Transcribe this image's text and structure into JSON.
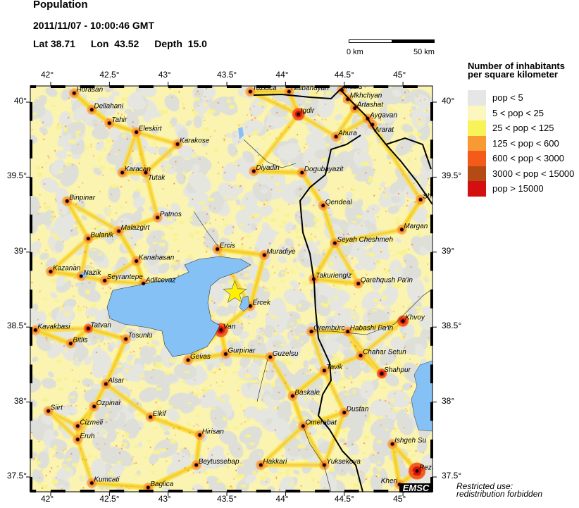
{
  "header": {
    "title": "Population",
    "datetime": "2011/11/07 - 10:00:46 GMT",
    "lat_label": "Lat",
    "lat": "38.71",
    "lon_label": "Lon",
    "lon": "43.52",
    "depth_label": "Depth",
    "depth": "15.0"
  },
  "scale_bar": {
    "start": "0 km",
    "end": "50 km"
  },
  "axes": {
    "lon_ticks": [
      {
        "v": 42,
        "label": "42°"
      },
      {
        "v": 42.5,
        "label": "42.5°"
      },
      {
        "v": 43,
        "label": "43°"
      },
      {
        "v": 43.5,
        "label": "43.5°"
      },
      {
        "v": 44,
        "label": "44°"
      },
      {
        "v": 44.5,
        "label": "44.5°"
      },
      {
        "v": 45,
        "label": "45°"
      }
    ],
    "lat_ticks": [
      {
        "v": 40,
        "label": "40°"
      },
      {
        "v": 39.5,
        "label": "39.5°"
      },
      {
        "v": 39,
        "label": "39°"
      },
      {
        "v": 38.5,
        "label": "38.5°"
      },
      {
        "v": 38,
        "label": "38°"
      },
      {
        "v": 37.5,
        "label": "37.5°"
      }
    ]
  },
  "legend": {
    "title_line1": "Number of inhabitants",
    "title_line2": "per square kilometer",
    "items": [
      {
        "label": "pop < 5",
        "color": "#e6e6e6"
      },
      {
        "label": "5 < pop < 25",
        "color": "#fbf7bd"
      },
      {
        "label": "25 < pop < 125",
        "color": "#f9f35a"
      },
      {
        "label": "125 < pop < 600",
        "color": "#f79a33"
      },
      {
        "label": "600 < pop < 3000",
        "color": "#f45a1a"
      },
      {
        "label": "3000 < pop < 15000",
        "color": "#b44a14"
      },
      {
        "label": "pop > 15000",
        "color": "#d40f0f"
      }
    ]
  },
  "colors": {
    "water": "#85c1f5",
    "epicenter": "#fff200",
    "border": "#000000"
  },
  "epicenter": {
    "lat": 38.71,
    "lon": 43.52,
    "icon": "star-icon"
  },
  "cities": [
    {
      "name": "Horasan",
      "lat": 40.06,
      "lon": 42.2
    },
    {
      "name": "Dellahani",
      "lat": 39.95,
      "lon": 42.35
    },
    {
      "name": "Tahir",
      "lat": 39.86,
      "lon": 42.5
    },
    {
      "name": "Eleskirt",
      "lat": 39.8,
      "lon": 42.73
    },
    {
      "name": "Karakose",
      "lat": 39.72,
      "lon": 43.08
    },
    {
      "name": "Tuzluca",
      "lat": 40.07,
      "lon": 43.7
    },
    {
      "name": "Nalbandyan",
      "lat": 40.07,
      "lon": 44.03
    },
    {
      "name": "Masis",
      "lat": 40.08,
      "lon": 44.48
    },
    {
      "name": "Mkhchyan",
      "lat": 40.02,
      "lon": 44.53
    },
    {
      "name": "Artashat",
      "lat": 39.96,
      "lon": 44.59
    },
    {
      "name": "Aygavan",
      "lat": 39.89,
      "lon": 44.7
    },
    {
      "name": "Ararat",
      "lat": 39.85,
      "lon": 44.74
    },
    {
      "name": "Igdir",
      "lat": 39.92,
      "lon": 44.11
    },
    {
      "name": "Ahura",
      "lat": 39.77,
      "lon": 44.43
    },
    {
      "name": "Karacan",
      "lat": 39.53,
      "lon": 42.61
    },
    {
      "name": "Tutak",
      "lat": 39.53,
      "lon": 42.81
    },
    {
      "name": "Diyadin",
      "lat": 39.54,
      "lon": 43.73
    },
    {
      "name": "Dogubayazit",
      "lat": 39.53,
      "lon": 44.14
    },
    {
      "name": "Sho",
      "lat": 39.35,
      "lon": 45.15
    },
    {
      "name": "Qendeal",
      "lat": 39.31,
      "lon": 44.32
    },
    {
      "name": "Binpinar",
      "lat": 39.34,
      "lon": 42.14
    },
    {
      "name": "Patnos",
      "lat": 39.23,
      "lon": 42.91
    },
    {
      "name": "Malazgirt",
      "lat": 39.14,
      "lon": 42.58
    },
    {
      "name": "Bulanik",
      "lat": 39.09,
      "lon": 42.32
    },
    {
      "name": "Seyah Cheshmeh",
      "lat": 39.06,
      "lon": 44.42
    },
    {
      "name": "Margan",
      "lat": 39.15,
      "lon": 44.99
    },
    {
      "name": "Ercis",
      "lat": 39.02,
      "lon": 43.42
    },
    {
      "name": "Muradiye",
      "lat": 38.98,
      "lon": 43.82
    },
    {
      "name": "Kanahasan",
      "lat": 38.94,
      "lon": 42.73
    },
    {
      "name": "Kazanan",
      "lat": 38.87,
      "lon": 42.0
    },
    {
      "name": "Nazik",
      "lat": 38.84,
      "lon": 42.26
    },
    {
      "name": "Seyrantepe",
      "lat": 38.81,
      "lon": 42.46
    },
    {
      "name": "Adilcevaz",
      "lat": 38.79,
      "lon": 42.79
    },
    {
      "name": "Takuriengiz",
      "lat": 38.82,
      "lon": 44.24
    },
    {
      "name": "Qarehqush Pa'in",
      "lat": 38.79,
      "lon": 44.62
    },
    {
      "name": "Ercek",
      "lat": 38.64,
      "lon": 43.7
    },
    {
      "name": "Khvoy",
      "lat": 38.54,
      "lon": 45.0
    },
    {
      "name": "Kavakbasi",
      "lat": 38.48,
      "lon": 41.87
    },
    {
      "name": "Tatvan",
      "lat": 38.49,
      "lon": 42.32
    },
    {
      "name": "Van",
      "lat": 38.48,
      "lon": 43.45
    },
    {
      "name": "Oremburc",
      "lat": 38.47,
      "lon": 44.22
    },
    {
      "name": "Habashi Pa'in",
      "lat": 38.47,
      "lon": 44.53
    },
    {
      "name": "Tosunlu",
      "lat": 38.42,
      "lon": 42.64
    },
    {
      "name": "Bitlis",
      "lat": 38.39,
      "lon": 42.17
    },
    {
      "name": "Gurpinar",
      "lat": 38.32,
      "lon": 43.49
    },
    {
      "name": "Guzelsu",
      "lat": 38.3,
      "lon": 43.87
    },
    {
      "name": "Gevas",
      "lat": 38.28,
      "lon": 43.17
    },
    {
      "name": "Chahar Setun",
      "lat": 38.31,
      "lon": 44.64
    },
    {
      "name": "Tavik",
      "lat": 38.21,
      "lon": 44.33
    },
    {
      "name": "Shahpur",
      "lat": 38.19,
      "lon": 44.82
    },
    {
      "name": "Alsar",
      "lat": 38.12,
      "lon": 42.47
    },
    {
      "name": "Siirt",
      "lat": 37.94,
      "lon": 41.98
    },
    {
      "name": "Ozpinar",
      "lat": 37.97,
      "lon": 42.37
    },
    {
      "name": "Baskale",
      "lat": 38.04,
      "lon": 44.06
    },
    {
      "name": "Dustan",
      "lat": 37.93,
      "lon": 44.5
    },
    {
      "name": "Elkif",
      "lat": 37.9,
      "lon": 42.85
    },
    {
      "name": "Cizmeli",
      "lat": 37.84,
      "lon": 42.23
    },
    {
      "name": "Eruh",
      "lat": 37.75,
      "lon": 42.23
    },
    {
      "name": "Hirisan",
      "lat": 37.78,
      "lon": 43.27
    },
    {
      "name": "Omerabat",
      "lat": 37.84,
      "lon": 44.15
    },
    {
      "name": "Ishgeh Su",
      "lat": 37.72,
      "lon": 44.91
    },
    {
      "name": "Beytussebap",
      "lat": 37.58,
      "lon": 43.24
    },
    {
      "name": "Hakkari",
      "lat": 37.58,
      "lon": 43.79
    },
    {
      "name": "Yuksekova",
      "lat": 37.58,
      "lon": 44.33
    },
    {
      "name": "Reza",
      "lat": 37.54,
      "lon": 45.12
    },
    {
      "name": "Kheri",
      "lat": 37.45,
      "lon": 44.97
    },
    {
      "name": "Kumcati",
      "lat": 37.46,
      "lon": 42.35
    },
    {
      "name": "Baglica",
      "lat": 37.43,
      "lon": 42.83
    }
  ],
  "logo": "EMSC",
  "restriction": {
    "line1": "Restricted use:",
    "line2": "redistribution forbidden"
  }
}
